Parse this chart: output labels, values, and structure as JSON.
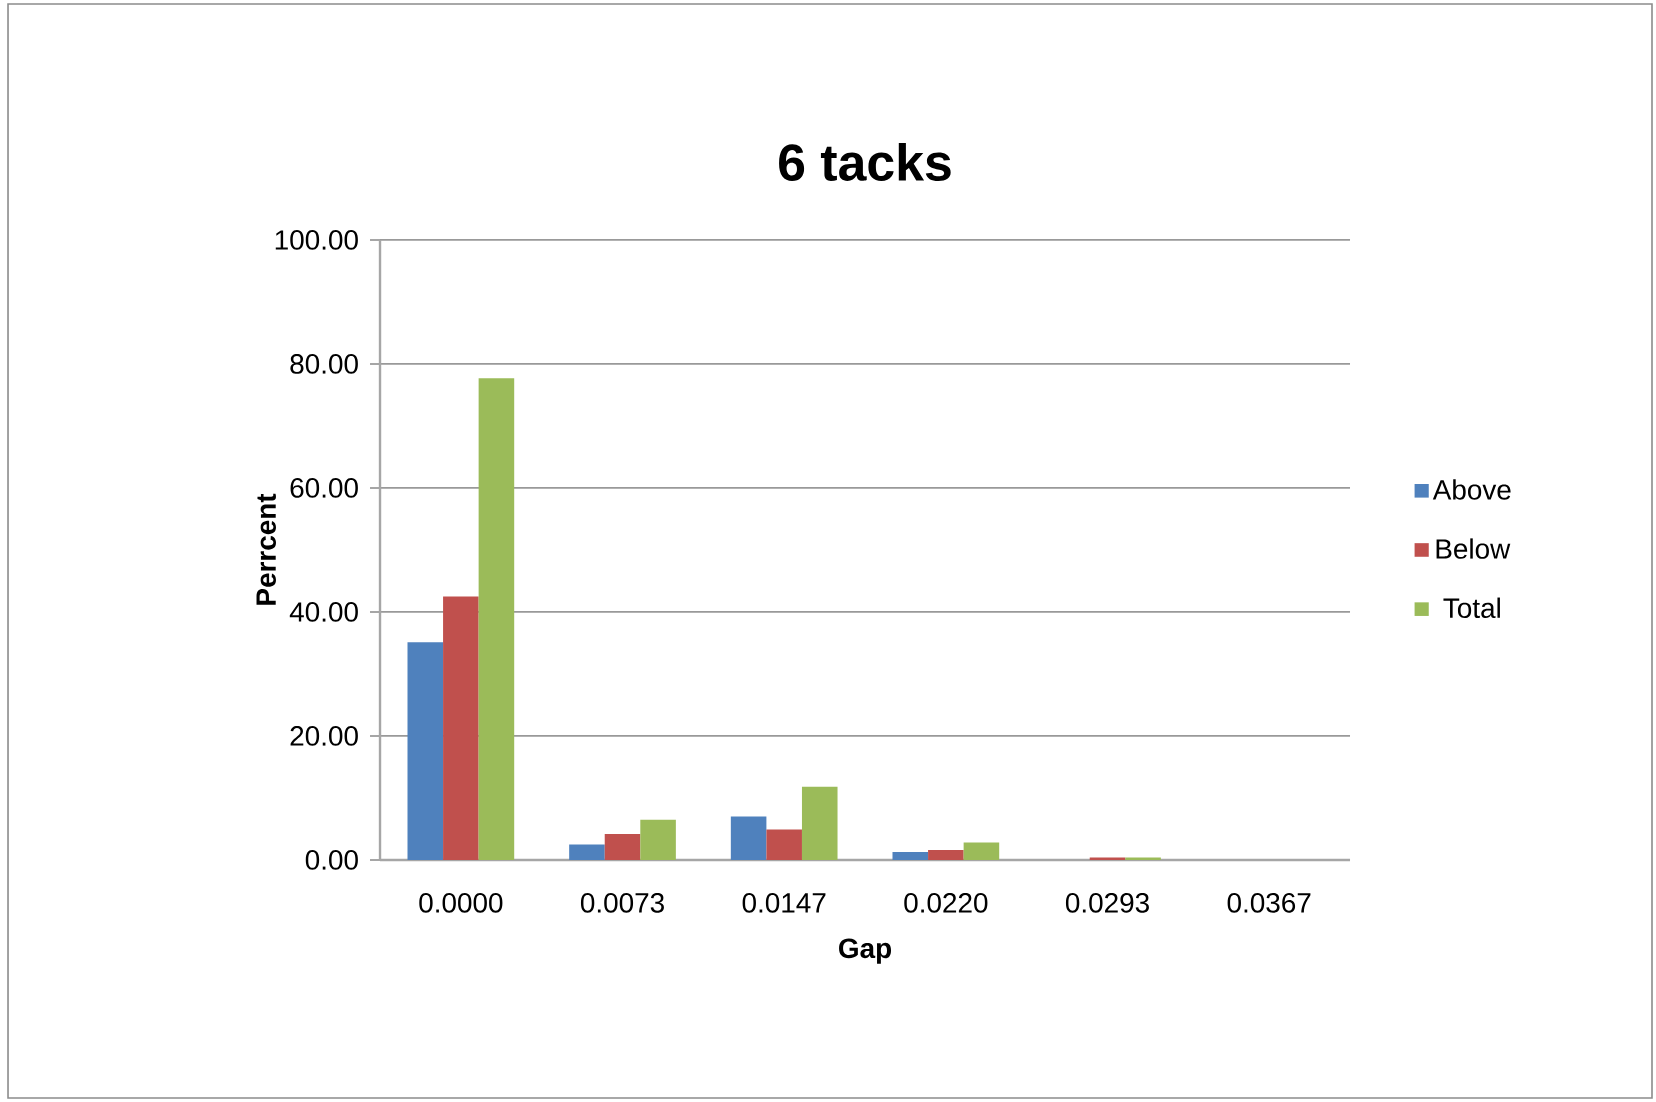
{
  "chart_data": {
    "type": "bar",
    "title": "6 tacks",
    "xlabel": "Gap",
    "ylabel": "Perrcent",
    "categories": [
      "0.0000",
      "0.0073",
      "0.0147",
      "0.0220",
      "0.0293",
      "0.0367"
    ],
    "series": [
      {
        "name": "Above",
        "color": "#4f81bd",
        "values": [
          35.1,
          2.5,
          7.0,
          1.3,
          0,
          0
        ]
      },
      {
        "name": "Below",
        "color": "#c0504d",
        "values": [
          42.5,
          4.2,
          4.9,
          1.6,
          0.4,
          0
        ]
      },
      {
        "name": "Total",
        "color": "#9bbb59",
        "values": [
          77.7,
          6.5,
          11.8,
          2.8,
          0.4,
          0
        ]
      }
    ],
    "ylim": [
      0,
      100
    ],
    "yticks": [
      {
        "value": 0,
        "label": "0.00"
      },
      {
        "value": 20,
        "label": "20.00"
      },
      {
        "value": 40,
        "label": "40.00"
      },
      {
        "value": 60,
        "label": "60.00"
      },
      {
        "value": 80,
        "label": "80.00"
      },
      {
        "value": 100,
        "label": "100.00"
      }
    ],
    "grid": "y",
    "legend": "right"
  }
}
